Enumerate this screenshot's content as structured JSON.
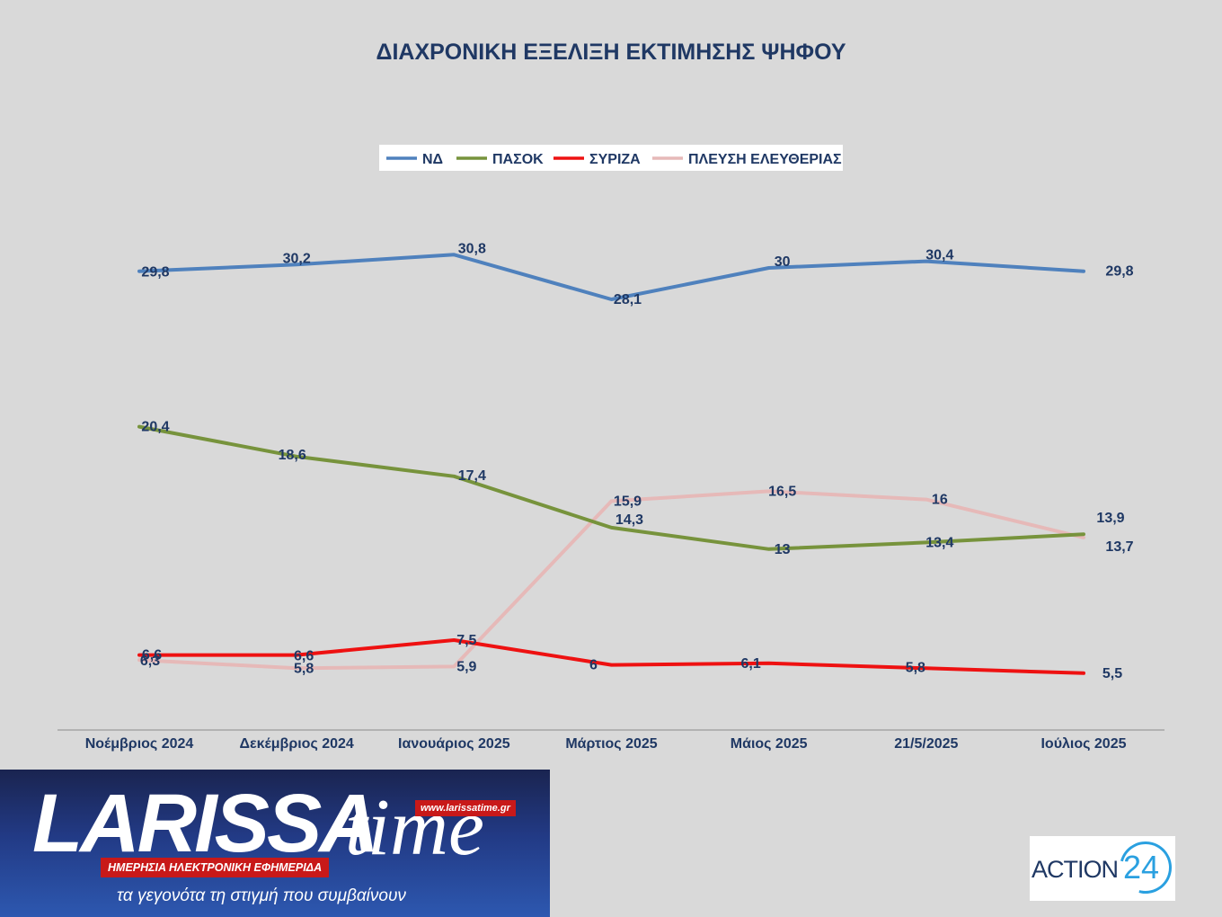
{
  "chart_data": {
    "type": "line",
    "title": "ΔΙΑΧΡΟΝΙΚΗ ΕΞΕΛΙΞΗ ΕΚΤΙΜΗΣΗΣ ΨΗΦΟΥ",
    "categories": [
      "Νοέμβριος 2024",
      "Δεκέμβριος 2024",
      "Ιανουάριος 2025",
      "Μάρτιος 2025",
      "Μάιος 2025",
      "21/5/2025",
      "Ιούλιος 2025"
    ],
    "series": [
      {
        "name": "ΝΔ",
        "color": "#4f81bd",
        "values": [
          29.8,
          30.2,
          30.8,
          28.1,
          30,
          30.4,
          29.8
        ],
        "labels": [
          "29,8",
          "30,2",
          "30,8",
          "28,1",
          "30",
          "30,4",
          "29,8"
        ]
      },
      {
        "name": "ΠΑΣΟΚ",
        "color": "#77933c",
        "values": [
          20.4,
          18.6,
          17.4,
          14.3,
          13,
          13.4,
          13.9
        ],
        "labels": [
          "20,4",
          "18,6",
          "17,4",
          "14,3",
          "13",
          "13,4",
          "13,9"
        ]
      },
      {
        "name": "ΣΥΡΙΖΑ",
        "color": "#ee1111",
        "values": [
          6.6,
          6.6,
          7.5,
          6,
          6.1,
          5.8,
          5.5
        ],
        "labels": [
          "6,6",
          "6,6",
          "7,5",
          "6",
          "6,1",
          "5,8",
          "5,5"
        ]
      },
      {
        "name": "ΠΛΕΥΣΗ ΕΛΕΥΘΕΡΙΑΣ",
        "color": "#e6b9b8",
        "values": [
          6.3,
          5.8,
          5.9,
          15.9,
          16.5,
          16,
          13.7
        ],
        "labels": [
          "6,3",
          "5,8",
          "5,9",
          "15,9",
          "16,5",
          "16",
          "13,7"
        ]
      }
    ],
    "ylim": [
      0,
      35
    ],
    "grid": false,
    "legend": "top-center",
    "xlabel": "",
    "ylabel": ""
  },
  "branding": {
    "larissa_logo": "LARISSA",
    "larissa_time": "time",
    "larissa_url": "www.larissatime.gr",
    "larissa_subtitle": "ΗΜΕΡΗΣΙΑ ΗΛΕΚΤΡΟΝΙΚΗ ΕΦΗΜΕΡΙΔΑ",
    "larissa_tagline": "τα γεγονότα τη στιγμή που συμβαίνουν",
    "action_logo": "ACTION",
    "action_number": "24"
  }
}
